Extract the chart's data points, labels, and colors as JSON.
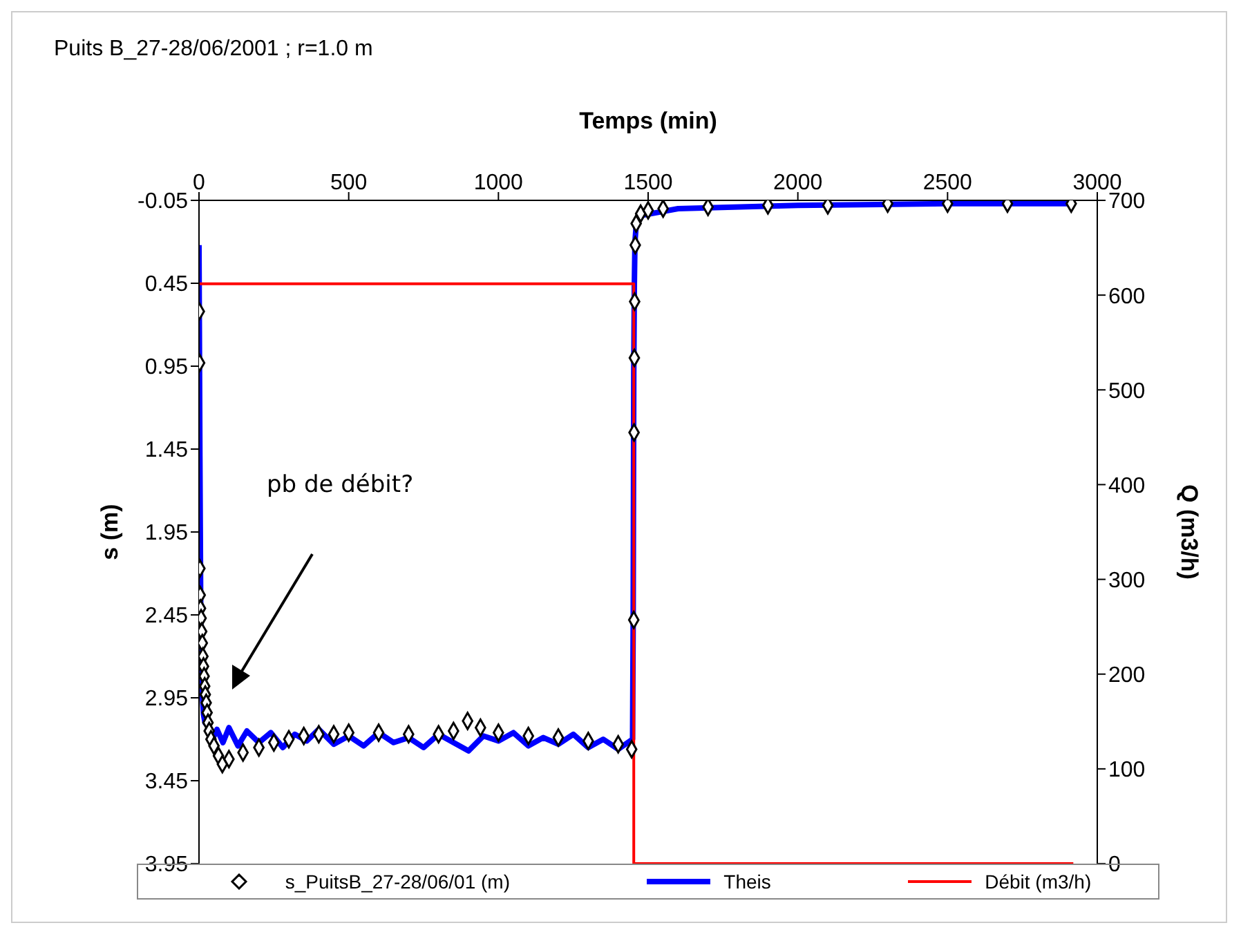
{
  "chart_data": {
    "type": "line",
    "title": "Puits B_27-28/06/2001 ; r=1.0 m",
    "xlabel": "Temps (min)",
    "ylabel": "s (m)",
    "y2label": "Q (m3/h)",
    "xlim": [
      0,
      3000
    ],
    "xticks": [
      0,
      500,
      1000,
      1500,
      2000,
      2500,
      3000
    ],
    "ylim": [
      3.95,
      -0.05
    ],
    "yticks": [
      -0.05,
      0.45,
      0.95,
      1.45,
      1.95,
      2.45,
      2.95,
      3.45,
      3.95
    ],
    "y2lim": [
      0,
      700
    ],
    "y2ticks": [
      0,
      100,
      200,
      300,
      400,
      500,
      600,
      700
    ],
    "legend": "bottom",
    "line_style": "solid",
    "annotations": [
      "pb de débit?"
    ],
    "series": [
      {
        "name": "s_PuitsB_27-28/06/01 (m)",
        "type": "scatter",
        "marker": "diamond",
        "color": "#000000",
        "x": [
          1,
          2,
          3,
          4,
          5,
          7,
          9,
          11,
          13,
          15,
          17,
          19,
          21,
          24,
          27,
          30,
          34,
          40,
          50,
          65,
          78,
          100,
          147,
          200,
          250,
          300,
          350,
          400,
          450,
          500,
          600,
          700,
          800,
          850,
          897,
          940,
          1000,
          1100,
          1200,
          1300,
          1400,
          1445,
          1452,
          1453,
          1454,
          1455,
          1457,
          1460,
          1475,
          1500,
          1550,
          1700,
          1900,
          2100,
          2300,
          2500,
          2700,
          2913
        ],
        "values": [
          0.62,
          0.93,
          2.17,
          2.33,
          2.41,
          2.47,
          2.55,
          2.62,
          2.7,
          2.76,
          2.82,
          2.88,
          2.93,
          2.98,
          3.04,
          3.1,
          3.15,
          3.2,
          3.24,
          3.3,
          3.35,
          3.32,
          3.28,
          3.25,
          3.22,
          3.2,
          3.18,
          3.17,
          3.17,
          3.16,
          3.16,
          3.17,
          3.17,
          3.15,
          3.09,
          3.13,
          3.16,
          3.18,
          3.19,
          3.21,
          3.23,
          3.26,
          2.48,
          1.35,
          0.9,
          0.56,
          0.22,
          0.09,
          0.03,
          0.01,
          0.0,
          -0.01,
          -0.02,
          -0.02,
          -0.03,
          -0.03,
          -0.03,
          -0.03
        ]
      },
      {
        "name": "Theis",
        "color": "#0000ff",
        "x": [
          0,
          3,
          6,
          10,
          15,
          20,
          30,
          45,
          60,
          80,
          100,
          130,
          160,
          200,
          240,
          280,
          320,
          360,
          400,
          450,
          500,
          550,
          600,
          650,
          700,
          750,
          800,
          850,
          900,
          950,
          1000,
          1050,
          1100,
          1150,
          1200,
          1250,
          1300,
          1350,
          1400,
          1448,
          1450,
          1452,
          1454,
          1456,
          1460,
          1480,
          1600,
          2000,
          2500,
          2920
        ],
        "values": [
          0.22,
          1.5,
          2.5,
          2.9,
          3.05,
          3.1,
          3.12,
          3.2,
          3.14,
          3.22,
          3.13,
          3.24,
          3.15,
          3.22,
          3.16,
          3.25,
          3.17,
          3.21,
          3.14,
          3.23,
          3.18,
          3.24,
          3.16,
          3.22,
          3.19,
          3.25,
          3.17,
          3.22,
          3.27,
          3.18,
          3.21,
          3.16,
          3.24,
          3.19,
          3.23,
          3.17,
          3.25,
          3.2,
          3.26,
          3.2,
          2.5,
          1.0,
          0.45,
          0.2,
          0.1,
          0.04,
          0.0,
          -0.02,
          -0.03,
          -0.03
        ]
      },
      {
        "name": "Débit (m3/h)",
        "type": "step",
        "axis": "y2",
        "color": "#ff0000",
        "x": [
          0,
          1452,
          2920
        ],
        "values": [
          612,
          0,
          0
        ]
      }
    ]
  }
}
